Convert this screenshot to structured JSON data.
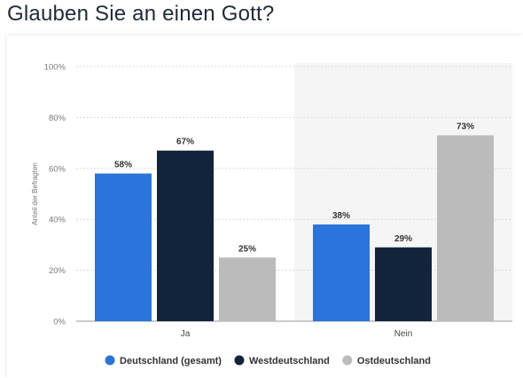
{
  "page": {
    "title": "Glauben Sie an einen Gott?"
  },
  "chart_data": {
    "type": "bar",
    "title": "",
    "xlabel": "",
    "ylabel": "Anteil der Befragten",
    "categories": [
      "Ja",
      "Nein"
    ],
    "series": [
      {
        "name": "Deutschland (gesamt)",
        "values": [
          58,
          38
        ],
        "color": "#2a74db"
      },
      {
        "name": "Westdeutschland",
        "values": [
          67,
          29
        ],
        "color": "#12233c"
      },
      {
        "name": "Ostdeutschland",
        "values": [
          25,
          73
        ],
        "color": "#bbbbbb"
      }
    ],
    "value_suffix": "%",
    "ylim": [
      0,
      100
    ],
    "yticks": [
      0,
      20,
      40,
      60,
      80,
      100
    ],
    "ytick_labels": [
      "0%",
      "20%",
      "40%",
      "60%",
      "80%",
      "100%"
    ],
    "grid": true,
    "legend_position": "bottom",
    "highlighted_category": "Nein",
    "highlight_color": "#f5f5f5"
  }
}
